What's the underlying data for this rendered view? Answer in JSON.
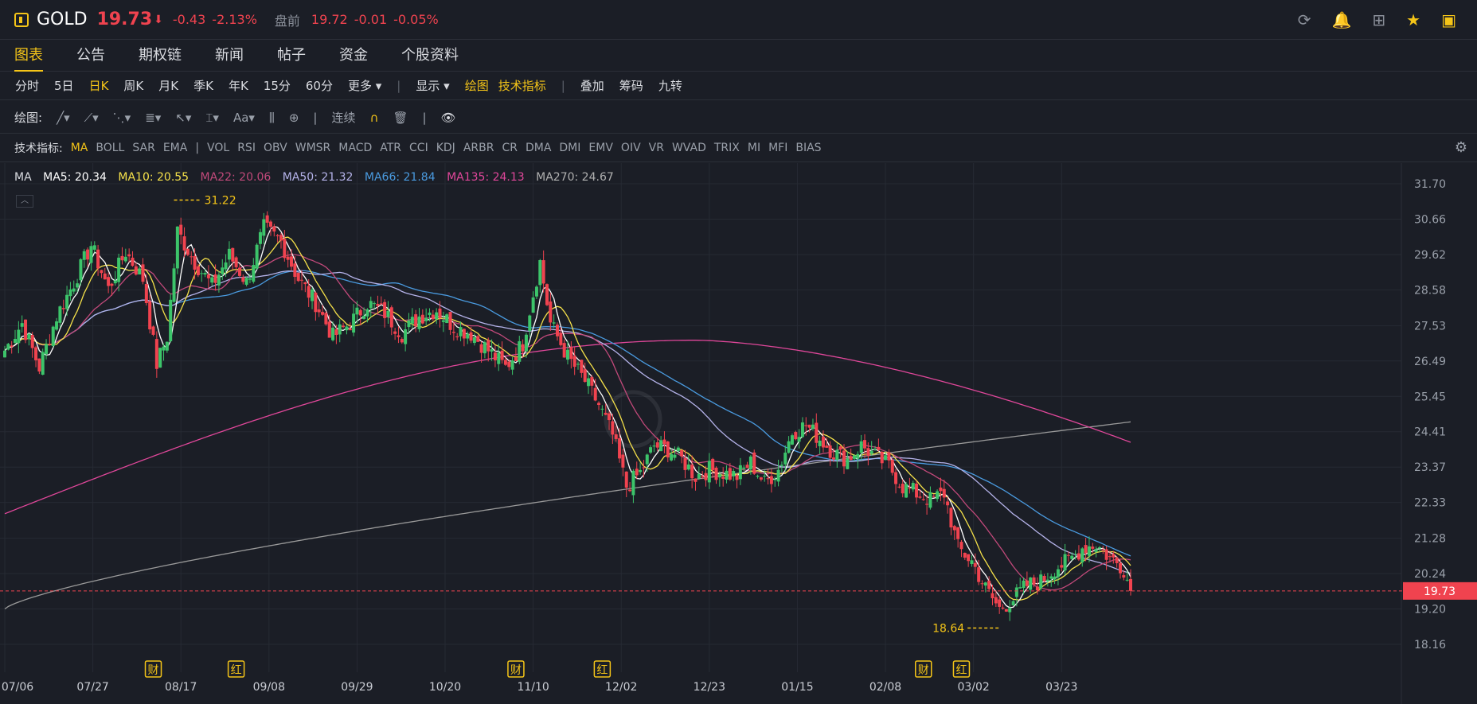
{
  "header": {
    "symbol": "GOLD",
    "price": "19.73",
    "arrow": "⬇",
    "change": "-0.43",
    "change_pct": "-2.13%",
    "premarket_label": "盘前",
    "premarket_price": "19.72",
    "premarket_change": "-0.01",
    "premarket_pct": "-0.05%"
  },
  "nav": {
    "tabs": [
      "图表",
      "公告",
      "期权链",
      "新闻",
      "帖子",
      "资金",
      "个股资料"
    ]
  },
  "periods": {
    "items": [
      "分时",
      "5日",
      "日K",
      "周K",
      "月K",
      "季K",
      "年K",
      "15分",
      "60分"
    ],
    "more": "更多",
    "display": "显示",
    "draw": "绘图",
    "indicators": "技术指标",
    "overlay": "叠加",
    "chips": "筹码",
    "nine": "九转"
  },
  "drawbar": {
    "label": "绘图:",
    "continuous": "连续"
  },
  "indbar": {
    "label": "技术指标:",
    "items": [
      "MA",
      "BOLL",
      "SAR",
      "EMA",
      "VOL",
      "RSI",
      "OBV",
      "WMSR",
      "MACD",
      "ATR",
      "CCI",
      "KDJ",
      "ARBR",
      "CR",
      "DMA",
      "DMI",
      "EMV",
      "OIV",
      "VR",
      "WVAD",
      "TRIX",
      "MI",
      "MFI",
      "BIAS"
    ]
  },
  "ma_legend": {
    "title": "MA",
    "items": [
      {
        "label": "MA5: 20.34",
        "color": "#ffffff"
      },
      {
        "label": "MA10: 20.55",
        "color": "#f5e14a"
      },
      {
        "label": "MA22: 20.06",
        "color": "#c1497a"
      },
      {
        "label": "MA50: 21.32",
        "color": "#b5b3ea"
      },
      {
        "label": "MA66: 21.84",
        "color": "#4a9be0"
      },
      {
        "label": "MA135: 24.13",
        "color": "#e0479a"
      },
      {
        "label": "MA270: 24.67",
        "color": "#b0b0b0"
      }
    ]
  },
  "chart_data": {
    "type": "candlestick",
    "yticks": [
      "31.70",
      "30.66",
      "29.62",
      "28.58",
      "27.53",
      "26.49",
      "25.45",
      "24.41",
      "23.37",
      "22.33",
      "21.28",
      "20.24",
      "19.20",
      "18.16"
    ],
    "ylim": [
      18.16,
      31.7
    ],
    "xticks": [
      "07/06",
      "07/27",
      "08/17",
      "09/08",
      "09/29",
      "10/20",
      "11/10",
      "12/02",
      "12/23",
      "01/15",
      "02/08",
      "03/02",
      "03/23"
    ],
    "high_label": "31.22",
    "low_label": "18.64",
    "last_price": "19.73",
    "events": [
      {
        "label": "财",
        "idx": 43
      },
      {
        "label": "红",
        "idx": 67
      },
      {
        "label": "财",
        "idx": 148
      },
      {
        "label": "红",
        "idx": 173
      },
      {
        "label": "财",
        "idx": 266
      },
      {
        "label": "红",
        "idx": 277
      }
    ],
    "close_anchors": [
      [
        0,
        26.8
      ],
      [
        5,
        27.6
      ],
      [
        10,
        26.3
      ],
      [
        15,
        27.8
      ],
      [
        20,
        28.8
      ],
      [
        25,
        29.9
      ],
      [
        30,
        28.6
      ],
      [
        35,
        29.7
      ],
      [
        40,
        28.9
      ],
      [
        44,
        26.4
      ],
      [
        47,
        27.2
      ],
      [
        50,
        30.3
      ],
      [
        55,
        29.4
      ],
      [
        60,
        28.7
      ],
      [
        65,
        29.6
      ],
      [
        70,
        28.8
      ],
      [
        75,
        30.4
      ],
      [
        80,
        30.0
      ],
      [
        85,
        28.9
      ],
      [
        90,
        28.2
      ],
      [
        95,
        27.2
      ],
      [
        100,
        27.6
      ],
      [
        105,
        28.2
      ],
      [
        110,
        27.9
      ],
      [
        115,
        27.3
      ],
      [
        120,
        27.8
      ],
      [
        125,
        28.0
      ],
      [
        130,
        27.5
      ],
      [
        135,
        27.3
      ],
      [
        140,
        26.8
      ],
      [
        145,
        26.3
      ],
      [
        150,
        27.0
      ],
      [
        152,
        28.0
      ],
      [
        155,
        29.4
      ],
      [
        158,
        27.6
      ],
      [
        163,
        26.6
      ],
      [
        168,
        25.9
      ],
      [
        172,
        25.2
      ],
      [
        176,
        24.3
      ],
      [
        180,
        22.8
      ],
      [
        184,
        23.2
      ],
      [
        188,
        24.0
      ],
      [
        192,
        23.9
      ],
      [
        196,
        23.6
      ],
      [
        200,
        23.1
      ],
      [
        204,
        23.3
      ],
      [
        208,
        23.2
      ],
      [
        212,
        23.1
      ],
      [
        216,
        23.5
      ],
      [
        220,
        22.9
      ],
      [
        224,
        23.3
      ],
      [
        228,
        24.4
      ],
      [
        232,
        24.6
      ],
      [
        236,
        24.2
      ],
      [
        240,
        23.8
      ],
      [
        244,
        23.6
      ],
      [
        248,
        24.0
      ],
      [
        252,
        23.7
      ],
      [
        256,
        23.4
      ],
      [
        260,
        22.8
      ],
      [
        264,
        22.6
      ],
      [
        268,
        22.4
      ],
      [
        272,
        22.6
      ],
      [
        276,
        21.0
      ],
      [
        280,
        20.6
      ],
      [
        284,
        19.8
      ],
      [
        288,
        19.2
      ],
      [
        292,
        19.5
      ],
      [
        296,
        19.9
      ],
      [
        300,
        20.0
      ],
      [
        304,
        20.4
      ],
      [
        308,
        20.6
      ],
      [
        312,
        21.0
      ],
      [
        316,
        21.1
      ],
      [
        320,
        20.7
      ],
      [
        324,
        20.4
      ],
      [
        326,
        19.73
      ]
    ]
  }
}
